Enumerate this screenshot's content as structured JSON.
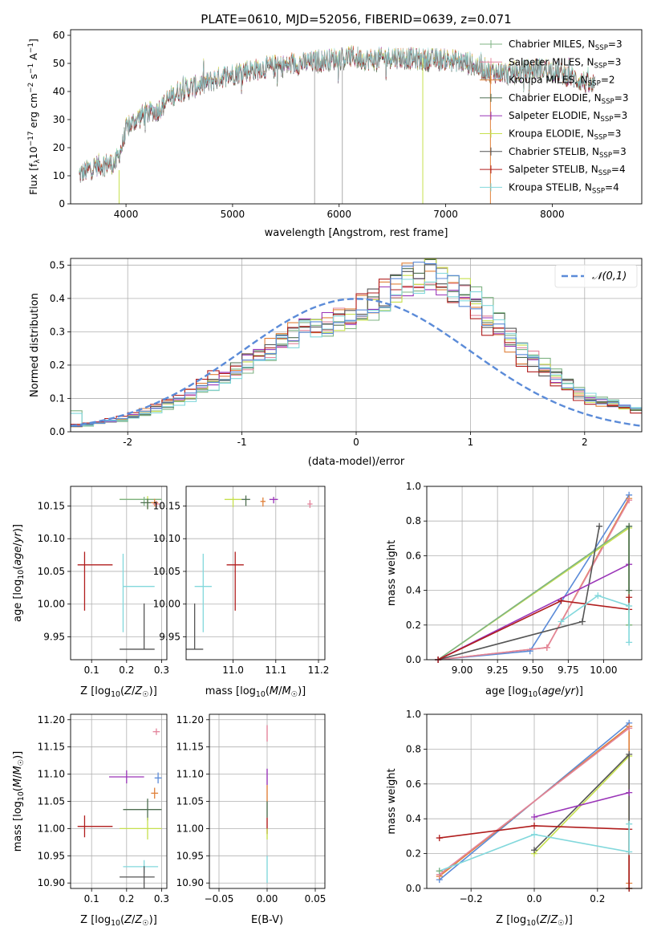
{
  "figure": {
    "title": "PLATE=0610, MJD=52056, FIBERID=0639, z=0.071"
  },
  "colors": {
    "chabrier_miles": "#7fb383",
    "salpeter_miles": "#e3849b",
    "kroupa_miles": "#e0803a",
    "chabrier_elodie": "#4e6e50",
    "salpeter_elodie": "#9a35b8",
    "kroupa_elodie": "#c6e04e",
    "chabrier_stelib": "#555555",
    "salpeter_stelib": "#b01d1d",
    "kroupa_stelib": "#82d8dc",
    "blue": "#5b8bd8"
  },
  "chart_data": [
    {
      "id": "spectrum",
      "type": "line",
      "title": "PLATE=0610, MJD=52056, FIBERID=0639, z=0.071",
      "xlabel": "wavelength [Angstrom, rest frame]",
      "ylabel": "Flux [f_λ10^-17 erg cm^-2 s^-1 A^-1]",
      "xlim": [
        3480,
        8840
      ],
      "ylim": [
        0,
        62
      ],
      "xticks": [
        4000,
        5000,
        6000,
        7000,
        8000
      ],
      "yticks": [
        0,
        10,
        20,
        30,
        40,
        50,
        60
      ],
      "legend_position": "top-right",
      "series": [
        {
          "name": "Chabrier MILES, N_SSP=3",
          "color_key": "chabrier_miles"
        },
        {
          "name": "Salpeter MILES, N_SSP=3",
          "color_key": "salpeter_miles"
        },
        {
          "name": "Kroupa MILES, N_SSP=2",
          "color_key": "kroupa_miles"
        },
        {
          "name": "Chabrier ELODIE, N_SSP=3",
          "color_key": "chabrier_elodie"
        },
        {
          "name": "Salpeter ELODIE, N_SSP=3",
          "color_key": "salpeter_elodie"
        },
        {
          "name": "Kroupa ELODIE, N_SSP=3",
          "color_key": "kroupa_elodie"
        },
        {
          "name": "Chabrier STELIB, N_SSP=3",
          "color_key": "chabrier_stelib"
        },
        {
          "name": "Salpeter STELIB, N_SSP=4",
          "color_key": "salpeter_stelib"
        },
        {
          "name": "Kroupa STELIB, N_SSP=4",
          "color_key": "kroupa_stelib"
        }
      ],
      "continuum_anchor_points": [
        [
          3560,
          10
        ],
        [
          3700,
          13
        ],
        [
          3800,
          14
        ],
        [
          3900,
          14
        ],
        [
          3960,
          20
        ],
        [
          4000,
          26
        ],
        [
          4100,
          30
        ],
        [
          4200,
          32
        ],
        [
          4300,
          33
        ],
        [
          4400,
          37
        ],
        [
          4500,
          40
        ],
        [
          4700,
          42
        ],
        [
          4900,
          45
        ],
        [
          5100,
          47
        ],
        [
          5300,
          48
        ],
        [
          5500,
          49
        ],
        [
          5700,
          50
        ],
        [
          5900,
          51
        ],
        [
          6100,
          52
        ],
        [
          6300,
          51
        ],
        [
          6500,
          52
        ],
        [
          6800,
          51
        ],
        [
          7000,
          51
        ],
        [
          7200,
          50
        ],
        [
          7400,
          47
        ],
        [
          7600,
          46
        ],
        [
          7900,
          48
        ],
        [
          8100,
          46
        ],
        [
          8300,
          43
        ],
        [
          8400,
          41
        ]
      ],
      "vertical_lines": [
        {
          "x": 5770,
          "y0": 0,
          "y1": 53,
          "color": "#aaaaaa"
        },
        {
          "x": 6030,
          "y0": 0,
          "y1": 50,
          "color": "#aaaaaa"
        },
        {
          "x": 6785,
          "y0": 0,
          "y1": 52,
          "color": "#c6e04e"
        },
        {
          "x": 7420,
          "y0": 0,
          "y1": 49,
          "color": "#e0803a"
        }
      ]
    },
    {
      "id": "residual_hist",
      "type": "line",
      "xlabel": "(data-model)/error",
      "ylabel": "Normed distribution",
      "xlim": [
        -2.5,
        2.5
      ],
      "ylim": [
        0,
        0.52
      ],
      "xticks": [
        -2,
        -1,
        0,
        1,
        2
      ],
      "yticks": [
        0.0,
        0.1,
        0.2,
        0.3,
        0.4,
        0.5
      ],
      "grid": true,
      "legend_position": "top-right",
      "reference_curve": {
        "name": "𝒩(0,1)",
        "mean": 0,
        "sigma": 1,
        "color_key": "blue",
        "style": "dashed"
      },
      "histogram": {
        "bin_start": -2.5,
        "bin_width": 0.1,
        "bins": 50,
        "shape_points_x": [
          -2.5,
          -2.0,
          -1.5,
          -1.0,
          -0.5,
          0.0,
          0.3,
          0.6,
          0.9,
          1.2,
          1.5,
          2.0,
          2.5
        ],
        "shape_points_y": [
          0.015,
          0.04,
          0.1,
          0.2,
          0.3,
          0.35,
          0.42,
          0.47,
          0.42,
          0.33,
          0.22,
          0.1,
          0.06
        ],
        "series_color_keys": [
          "chabrier_miles",
          "salpeter_miles",
          "kroupa_miles",
          "chabrier_elodie",
          "salpeter_elodie",
          "kroupa_elodie",
          "chabrier_stelib",
          "salpeter_stelib",
          "kroupa_stelib",
          "blue"
        ]
      }
    },
    {
      "id": "age_vs_Z",
      "type": "scatter",
      "xlabel": "Z [log10(Z/Z☉)]",
      "ylabel": "age  [log10(age/yr)]",
      "xlim": [
        0.04,
        0.315
      ],
      "ylim": [
        9.915,
        10.18
      ],
      "xticks": [
        0.1,
        0.2,
        0.3
      ],
      "yticks": [
        9.95,
        10.0,
        10.05,
        10.1,
        10.15
      ],
      "grid": true,
      "points": [
        {
          "x": 0.26,
          "y": 10.16,
          "xerr": [
            0.08,
            0.04
          ],
          "yerr": [
            0.015,
            0.005
          ],
          "color_key": "kroupa_elodie"
        },
        {
          "x": 0.25,
          "y": 10.16,
          "xerr": [
            0.07,
            0.05
          ],
          "yerr": [
            0.01,
            0.004
          ],
          "color_key": "chabrier_miles"
        },
        {
          "x": 0.26,
          "y": 10.155,
          "xerr": [
            0.02,
            0.03
          ],
          "yerr": [
            0.01,
            0.006
          ],
          "color_key": "chabrier_elodie"
        },
        {
          "x": 0.28,
          "y": 10.155,
          "xerr": [
            0.01,
            0.01
          ],
          "yerr": [
            0.006,
            0.006
          ],
          "color_key": "kroupa_miles"
        },
        {
          "x": 0.285,
          "y": 10.153,
          "xerr": [
            0.01,
            0.01
          ],
          "yerr": [
            0.005,
            0.005
          ],
          "color_key": "salpeter_miles"
        },
        {
          "x": 0.08,
          "y": 10.06,
          "xerr": [
            0.02,
            0.08
          ],
          "yerr": [
            0.07,
            0.02
          ],
          "color_key": "salpeter_stelib"
        },
        {
          "x": 0.19,
          "y": 10.027,
          "xerr": [
            0.0,
            0.09
          ],
          "yerr": [
            0.07,
            0.05
          ],
          "color_key": "kroupa_stelib"
        },
        {
          "x": 0.25,
          "y": 9.931,
          "xerr": [
            0.07,
            0.03
          ],
          "yerr": [
            0.0,
            0.07
          ],
          "color_key": "chabrier_stelib"
        }
      ]
    },
    {
      "id": "age_vs_mass",
      "type": "scatter",
      "xlabel": "mass [log10(M/M☉)]",
      "ylabel": "",
      "xlim": [
        10.89,
        11.215
      ],
      "ylim": [
        9.915,
        10.18
      ],
      "xticks": [
        11.0,
        11.1,
        11.2
      ],
      "yticks": [
        9.95,
        10.0,
        10.05,
        10.1,
        10.15
      ],
      "grid": true,
      "points": [
        {
          "x": 11.0,
          "y": 10.16,
          "xerr": [
            0.02,
            0.02
          ],
          "yerr": [
            0.012,
            0.004
          ],
          "color_key": "kroupa_elodie"
        },
        {
          "x": 11.03,
          "y": 10.16,
          "xerr": [
            0.01,
            0.01
          ],
          "yerr": [
            0.01,
            0.006
          ],
          "color_key": "chabrier_elodie"
        },
        {
          "x": 11.07,
          "y": 10.157,
          "xerr": [
            0.006,
            0.006
          ],
          "yerr": [
            0.008,
            0.006
          ],
          "color_key": "kroupa_miles"
        },
        {
          "x": 11.095,
          "y": 10.16,
          "xerr": [
            0.01,
            0.01
          ],
          "yerr": [
            0.006,
            0.004
          ],
          "color_key": "salpeter_elodie"
        },
        {
          "x": 11.18,
          "y": 10.153,
          "xerr": [
            0.006,
            0.006
          ],
          "yerr": [
            0.006,
            0.006
          ],
          "color_key": "salpeter_miles"
        },
        {
          "x": 11.005,
          "y": 10.06,
          "xerr": [
            0.02,
            0.02
          ],
          "yerr": [
            0.07,
            0.02
          ],
          "color_key": "salpeter_stelib"
        },
        {
          "x": 10.93,
          "y": 10.027,
          "xerr": [
            0.02,
            0.02
          ],
          "yerr": [
            0.07,
            0.05
          ],
          "color_key": "kroupa_stelib"
        },
        {
          "x": 10.91,
          "y": 9.931,
          "xerr": [
            0.02,
            0.02
          ],
          "yerr": [
            0.0,
            0.07
          ],
          "color_key": "chabrier_stelib"
        }
      ]
    },
    {
      "id": "mass_weight_vs_age",
      "type": "line",
      "xlabel": "age  [log10(age/yr)]",
      "ylabel": "mass weight",
      "xlim": [
        8.75,
        10.27
      ],
      "ylim": [
        0,
        1.0
      ],
      "xticks": [
        9.0,
        9.25,
        9.5,
        9.75,
        10.0
      ],
      "xtick_labels": [
        "9.00",
        "9.25",
        "9.50",
        "9.75",
        "10.00"
      ],
      "yticks": [
        0.0,
        0.2,
        0.4,
        0.6,
        0.8,
        1.0
      ],
      "grid": true,
      "series": [
        {
          "color_key": "blue",
          "x": [
            8.83,
            9.48,
            10.18
          ],
          "y": [
            0.0,
            0.05,
            0.95
          ]
        },
        {
          "color_key": "kroupa_miles",
          "x": [
            8.83,
            9.6,
            10.18
          ],
          "y": [
            0.0,
            0.07,
            0.93
          ]
        },
        {
          "color_key": "salpeter_miles",
          "x": [
            8.83,
            9.6,
            10.18
          ],
          "y": [
            0.0,
            0.07,
            0.92
          ]
        },
        {
          "color_key": "kroupa_elodie",
          "x": [
            8.83,
            10.18,
            10.18
          ],
          "y": [
            0.0,
            0.76,
            0.2
          ]
        },
        {
          "color_key": "chabrier_miles",
          "x": [
            8.83,
            10.18,
            10.18
          ],
          "y": [
            0.0,
            0.77,
            0.2
          ]
        },
        {
          "color_key": "chabrier_stelib",
          "x": [
            8.83,
            9.85,
            9.97
          ],
          "y": [
            0.0,
            0.22,
            0.77
          ]
        },
        {
          "color_key": "salpeter_elodie",
          "x": [
            8.83,
            10.18
          ],
          "y": [
            0.0,
            0.55
          ]
        },
        {
          "color_key": "salpeter_stelib",
          "x": [
            8.83,
            9.7,
            10.18,
            10.18
          ],
          "y": [
            0.0,
            0.34,
            0.29,
            0.36
          ]
        },
        {
          "color_key": "kroupa_stelib",
          "x": [
            9.7,
            9.96,
            10.18,
            10.18
          ],
          "y": [
            0.22,
            0.37,
            0.31,
            0.1
          ]
        },
        {
          "color_key": "chabrier_elodie",
          "x": [
            10.18,
            10.18
          ],
          "y": [
            0.77,
            0.4
          ]
        }
      ]
    },
    {
      "id": "mass_vs_Z",
      "type": "scatter",
      "xlabel": "Z [log10(Z/Z☉)]",
      "ylabel": "mass [log10(M/M☉)]",
      "xlim": [
        0.04,
        0.315
      ],
      "ylim": [
        10.89,
        11.21
      ],
      "xticks": [
        0.1,
        0.2,
        0.3
      ],
      "yticks": [
        10.9,
        10.95,
        11.0,
        11.05,
        11.1,
        11.15,
        11.2
      ],
      "grid": true,
      "points": [
        {
          "x": 0.285,
          "y": 11.178,
          "xerr": [
            0.01,
            0.01
          ],
          "yerr": [
            0.006,
            0.006
          ],
          "color_key": "salpeter_miles"
        },
        {
          "x": 0.2,
          "y": 11.095,
          "xerr": [
            0.05,
            0.05
          ],
          "yerr": [
            0.012,
            0.012
          ],
          "color_key": "salpeter_elodie"
        },
        {
          "x": 0.29,
          "y": 11.093,
          "xerr": [
            0.01,
            0.01
          ],
          "yerr": [
            0.01,
            0.01
          ],
          "color_key": "blue"
        },
        {
          "x": 0.28,
          "y": 11.065,
          "xerr": [
            0.01,
            0.01
          ],
          "yerr": [
            0.01,
            0.01
          ],
          "color_key": "kroupa_miles"
        },
        {
          "x": 0.26,
          "y": 11.035,
          "xerr": [
            0.07,
            0.04
          ],
          "yerr": [
            0.02,
            0.02
          ],
          "color_key": "chabrier_elodie"
        },
        {
          "x": 0.26,
          "y": 11.0,
          "xerr": [
            0.08,
            0.04
          ],
          "yerr": [
            0.02,
            0.02
          ],
          "color_key": "kroupa_elodie"
        },
        {
          "x": 0.08,
          "y": 11.004,
          "xerr": [
            0.02,
            0.08
          ],
          "yerr": [
            0.02,
            0.02
          ],
          "color_key": "salpeter_stelib"
        },
        {
          "x": 0.25,
          "y": 10.93,
          "xerr": [
            0.06,
            0.04
          ],
          "yerr": [
            0.012,
            0.012
          ],
          "color_key": "kroupa_stelib"
        },
        {
          "x": 0.25,
          "y": 10.911,
          "xerr": [
            0.07,
            0.03
          ],
          "yerr": [
            0.02,
            0.02
          ],
          "color_key": "chabrier_stelib"
        }
      ]
    },
    {
      "id": "mass_vs_ebv",
      "type": "scatter",
      "xlabel": "E(B-V)",
      "ylabel": "",
      "xlim": [
        -0.06,
        0.06
      ],
      "ylim": [
        10.89,
        11.21
      ],
      "xticks": [
        -0.05,
        0.0,
        0.05
      ],
      "xtick_labels": [
        "−0.05",
        "0.00",
        "0.05"
      ],
      "yticks": [
        10.9,
        10.95,
        11.0,
        11.05,
        11.1,
        11.15,
        11.2
      ],
      "grid": true,
      "vertical_segments": [
        {
          "x": 0.0,
          "y0": 11.16,
          "y1": 11.19,
          "color_key": "salpeter_miles"
        },
        {
          "x": 0.0,
          "y0": 11.08,
          "y1": 11.11,
          "color_key": "salpeter_elodie"
        },
        {
          "x": 0.0,
          "y0": 11.05,
          "y1": 11.08,
          "color_key": "kroupa_miles"
        },
        {
          "x": 0.0,
          "y0": 11.02,
          "y1": 11.05,
          "color_key": "chabrier_elodie"
        },
        {
          "x": 0.0,
          "y0": 10.99,
          "y1": 11.02,
          "color_key": "salpeter_stelib"
        },
        {
          "x": 0.0,
          "y0": 10.98,
          "y1": 11.0,
          "color_key": "kroupa_elodie"
        },
        {
          "x": 0.0,
          "y0": 10.9,
          "y1": 10.95,
          "color_key": "kroupa_stelib"
        }
      ]
    },
    {
      "id": "mass_weight_vs_Z",
      "type": "line",
      "xlabel": "Z [log10(Z/Z☉)]",
      "ylabel": "mass weight",
      "xlim": [
        -0.34,
        0.34
      ],
      "ylim": [
        0,
        1.0
      ],
      "xticks": [
        -0.2,
        0.0,
        0.2
      ],
      "xtick_labels": [
        "−0.2",
        "0.0",
        "0.2"
      ],
      "yticks": [
        0.0,
        0.2,
        0.4,
        0.6,
        0.8,
        1.0
      ],
      "grid": true,
      "series": [
        {
          "color_key": "blue",
          "x": [
            -0.3,
            0.3
          ],
          "y": [
            0.05,
            0.95
          ]
        },
        {
          "color_key": "kroupa_miles",
          "x": [
            -0.3,
            0.3,
            0.3
          ],
          "y": [
            0.07,
            0.93,
            0.03
          ]
        },
        {
          "color_key": "salpeter_miles",
          "x": [
            -0.3,
            0.3
          ],
          "y": [
            0.08,
            0.92
          ]
        },
        {
          "color_key": "kroupa_elodie",
          "x": [
            0.0,
            0.3,
            0.3
          ],
          "y": [
            0.2,
            0.76,
            0.0
          ]
        },
        {
          "color_key": "chabrier_stelib",
          "x": [
            0.0,
            0.3,
            0.3
          ],
          "y": [
            0.22,
            0.77,
            0.0
          ]
        },
        {
          "color_key": "salpeter_elodie",
          "x": [
            0.0,
            0.3
          ],
          "y": [
            0.41,
            0.55
          ]
        },
        {
          "color_key": "salpeter_stelib",
          "x": [
            -0.3,
            0.0,
            0.3,
            0.3
          ],
          "y": [
            0.29,
            0.36,
            0.34,
            0.0
          ]
        },
        {
          "color_key": "kroupa_stelib",
          "x": [
            -0.3,
            0.0,
            0.3,
            0.3
          ],
          "y": [
            0.1,
            0.31,
            0.21,
            0.37
          ]
        },
        {
          "color_key": "chabrier_miles",
          "x": [
            -0.3
          ],
          "y": [
            0.1
          ]
        }
      ]
    }
  ]
}
